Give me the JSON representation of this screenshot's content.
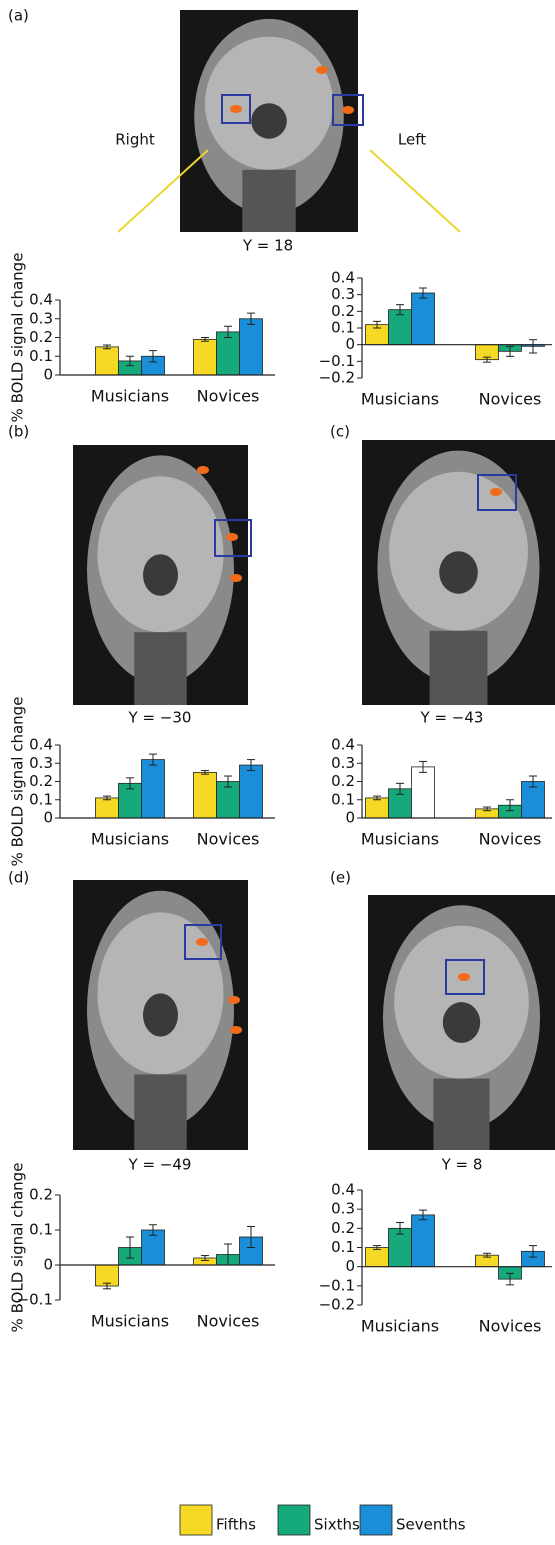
{
  "figure": {
    "panels": [
      "(a)",
      "(b)",
      "(c)",
      "(d)",
      "(e)"
    ],
    "side_labels": [
      "Right",
      "Left"
    ],
    "slice_labels": [
      "Y = 18",
      "Y = −30",
      "Y = −43",
      "Y = −49",
      "Y = 8"
    ],
    "legend": [
      {
        "name": "Fifths",
        "color": "#f5d924"
      },
      {
        "name": "Sixths",
        "color": "#16a97c"
      },
      {
        "name": "Sevenths",
        "color": "#1a8ed8"
      }
    ]
  },
  "chart_data": [
    {
      "type": "bar",
      "ylabel": "% BOLD signal change",
      "categories": [
        "Musicians",
        "Novices"
      ],
      "ylim": [
        0,
        0.4
      ],
      "yticks": [
        0,
        0.1,
        0.2,
        0.3,
        0.4
      ],
      "series": [
        {
          "values": [
            0.15,
            0.19
          ],
          "errors": [
            0.01,
            0.01
          ]
        },
        {
          "values": [
            0.075,
            0.23
          ],
          "errors": [
            0.025,
            0.03
          ]
        },
        {
          "values": [
            0.1,
            0.3
          ],
          "errors": [
            0.03,
            0.03
          ]
        }
      ]
    },
    {
      "type": "bar",
      "categories": [
        "Musicians",
        "Novices"
      ],
      "ylim": [
        -0.2,
        0.4
      ],
      "yticks": [
        {
          "value": -0.2,
          "label": "−0.2"
        },
        {
          "value": -0.1,
          "label": "−0.1"
        },
        0,
        0.1,
        0.2,
        0.3,
        0.4
      ],
      "series": [
        {
          "values": [
            0.12,
            -0.09
          ],
          "errors": [
            0.02,
            0.015
          ]
        },
        {
          "values": [
            0.21,
            -0.04
          ],
          "errors": [
            0.03,
            0.03
          ]
        },
        {
          "values": [
            0.31,
            -0.01
          ],
          "errors": [
            0.03,
            0.04
          ]
        }
      ]
    },
    {
      "type": "bar",
      "ylabel": "% BOLD signal change",
      "categories": [
        "Musicians",
        "Novices"
      ],
      "ylim": [
        0,
        0.4
      ],
      "yticks": [
        0,
        0.1,
        0.2,
        0.3,
        0.4
      ],
      "series": [
        {
          "values": [
            0.11,
            0.25
          ],
          "errors": [
            0.01,
            0.01
          ]
        },
        {
          "values": [
            0.19,
            0.2
          ],
          "errors": [
            0.03,
            0.03
          ]
        },
        {
          "values": [
            0.32,
            0.29
          ],
          "errors": [
            0.03,
            0.03
          ]
        }
      ]
    },
    {
      "type": "bar",
      "categories": [
        "Musicians",
        "Novices"
      ],
      "ylim": [
        0,
        0.4
      ],
      "yticks": [
        0,
        0.1,
        0.2,
        0.3,
        0.4
      ],
      "series": [
        {
          "values": [
            0.11,
            0.05
          ],
          "errors": [
            0.01,
            0.01
          ]
        },
        {
          "values": [
            0.16,
            0.07
          ],
          "errors": [
            0.03,
            0.03
          ]
        },
        {
          "values": [
            0.28,
            0.2
          ],
          "errors": [
            0.03,
            0.03
          ],
          "bar_colors": [
            "#ffffff",
            "#1a8ed8"
          ]
        }
      ]
    },
    {
      "type": "bar",
      "ylabel": "% BOLD signal change",
      "categories": [
        "Musicians",
        "Novices"
      ],
      "ylim": [
        -0.1,
        0.2
      ],
      "yticks": [
        {
          "value": -0.1,
          "label": "−0.1"
        },
        0,
        0.1,
        0.2
      ],
      "series": [
        {
          "values": [
            -0.06,
            0.02
          ],
          "errors": [
            0.008,
            0.007
          ]
        },
        {
          "values": [
            0.05,
            0.03
          ],
          "errors": [
            0.03,
            0.03
          ]
        },
        {
          "values": [
            0.1,
            0.08
          ],
          "errors": [
            0.015,
            0.03
          ]
        }
      ]
    },
    {
      "type": "bar",
      "categories": [
        "Musicians",
        "Novices"
      ],
      "ylim": [
        -0.2,
        0.4
      ],
      "yticks": [
        {
          "value": -0.2,
          "label": "−0.2"
        },
        {
          "value": -0.1,
          "label": "−0.1"
        },
        0,
        0.1,
        0.2,
        0.3,
        0.4
      ],
      "series": [
        {
          "values": [
            0.1,
            0.06
          ],
          "errors": [
            0.01,
            0.01
          ]
        },
        {
          "values": [
            0.2,
            -0.065
          ],
          "errors": [
            0.03,
            0.03
          ]
        },
        {
          "values": [
            0.27,
            0.08
          ],
          "errors": [
            0.025,
            0.03
          ]
        }
      ]
    }
  ]
}
